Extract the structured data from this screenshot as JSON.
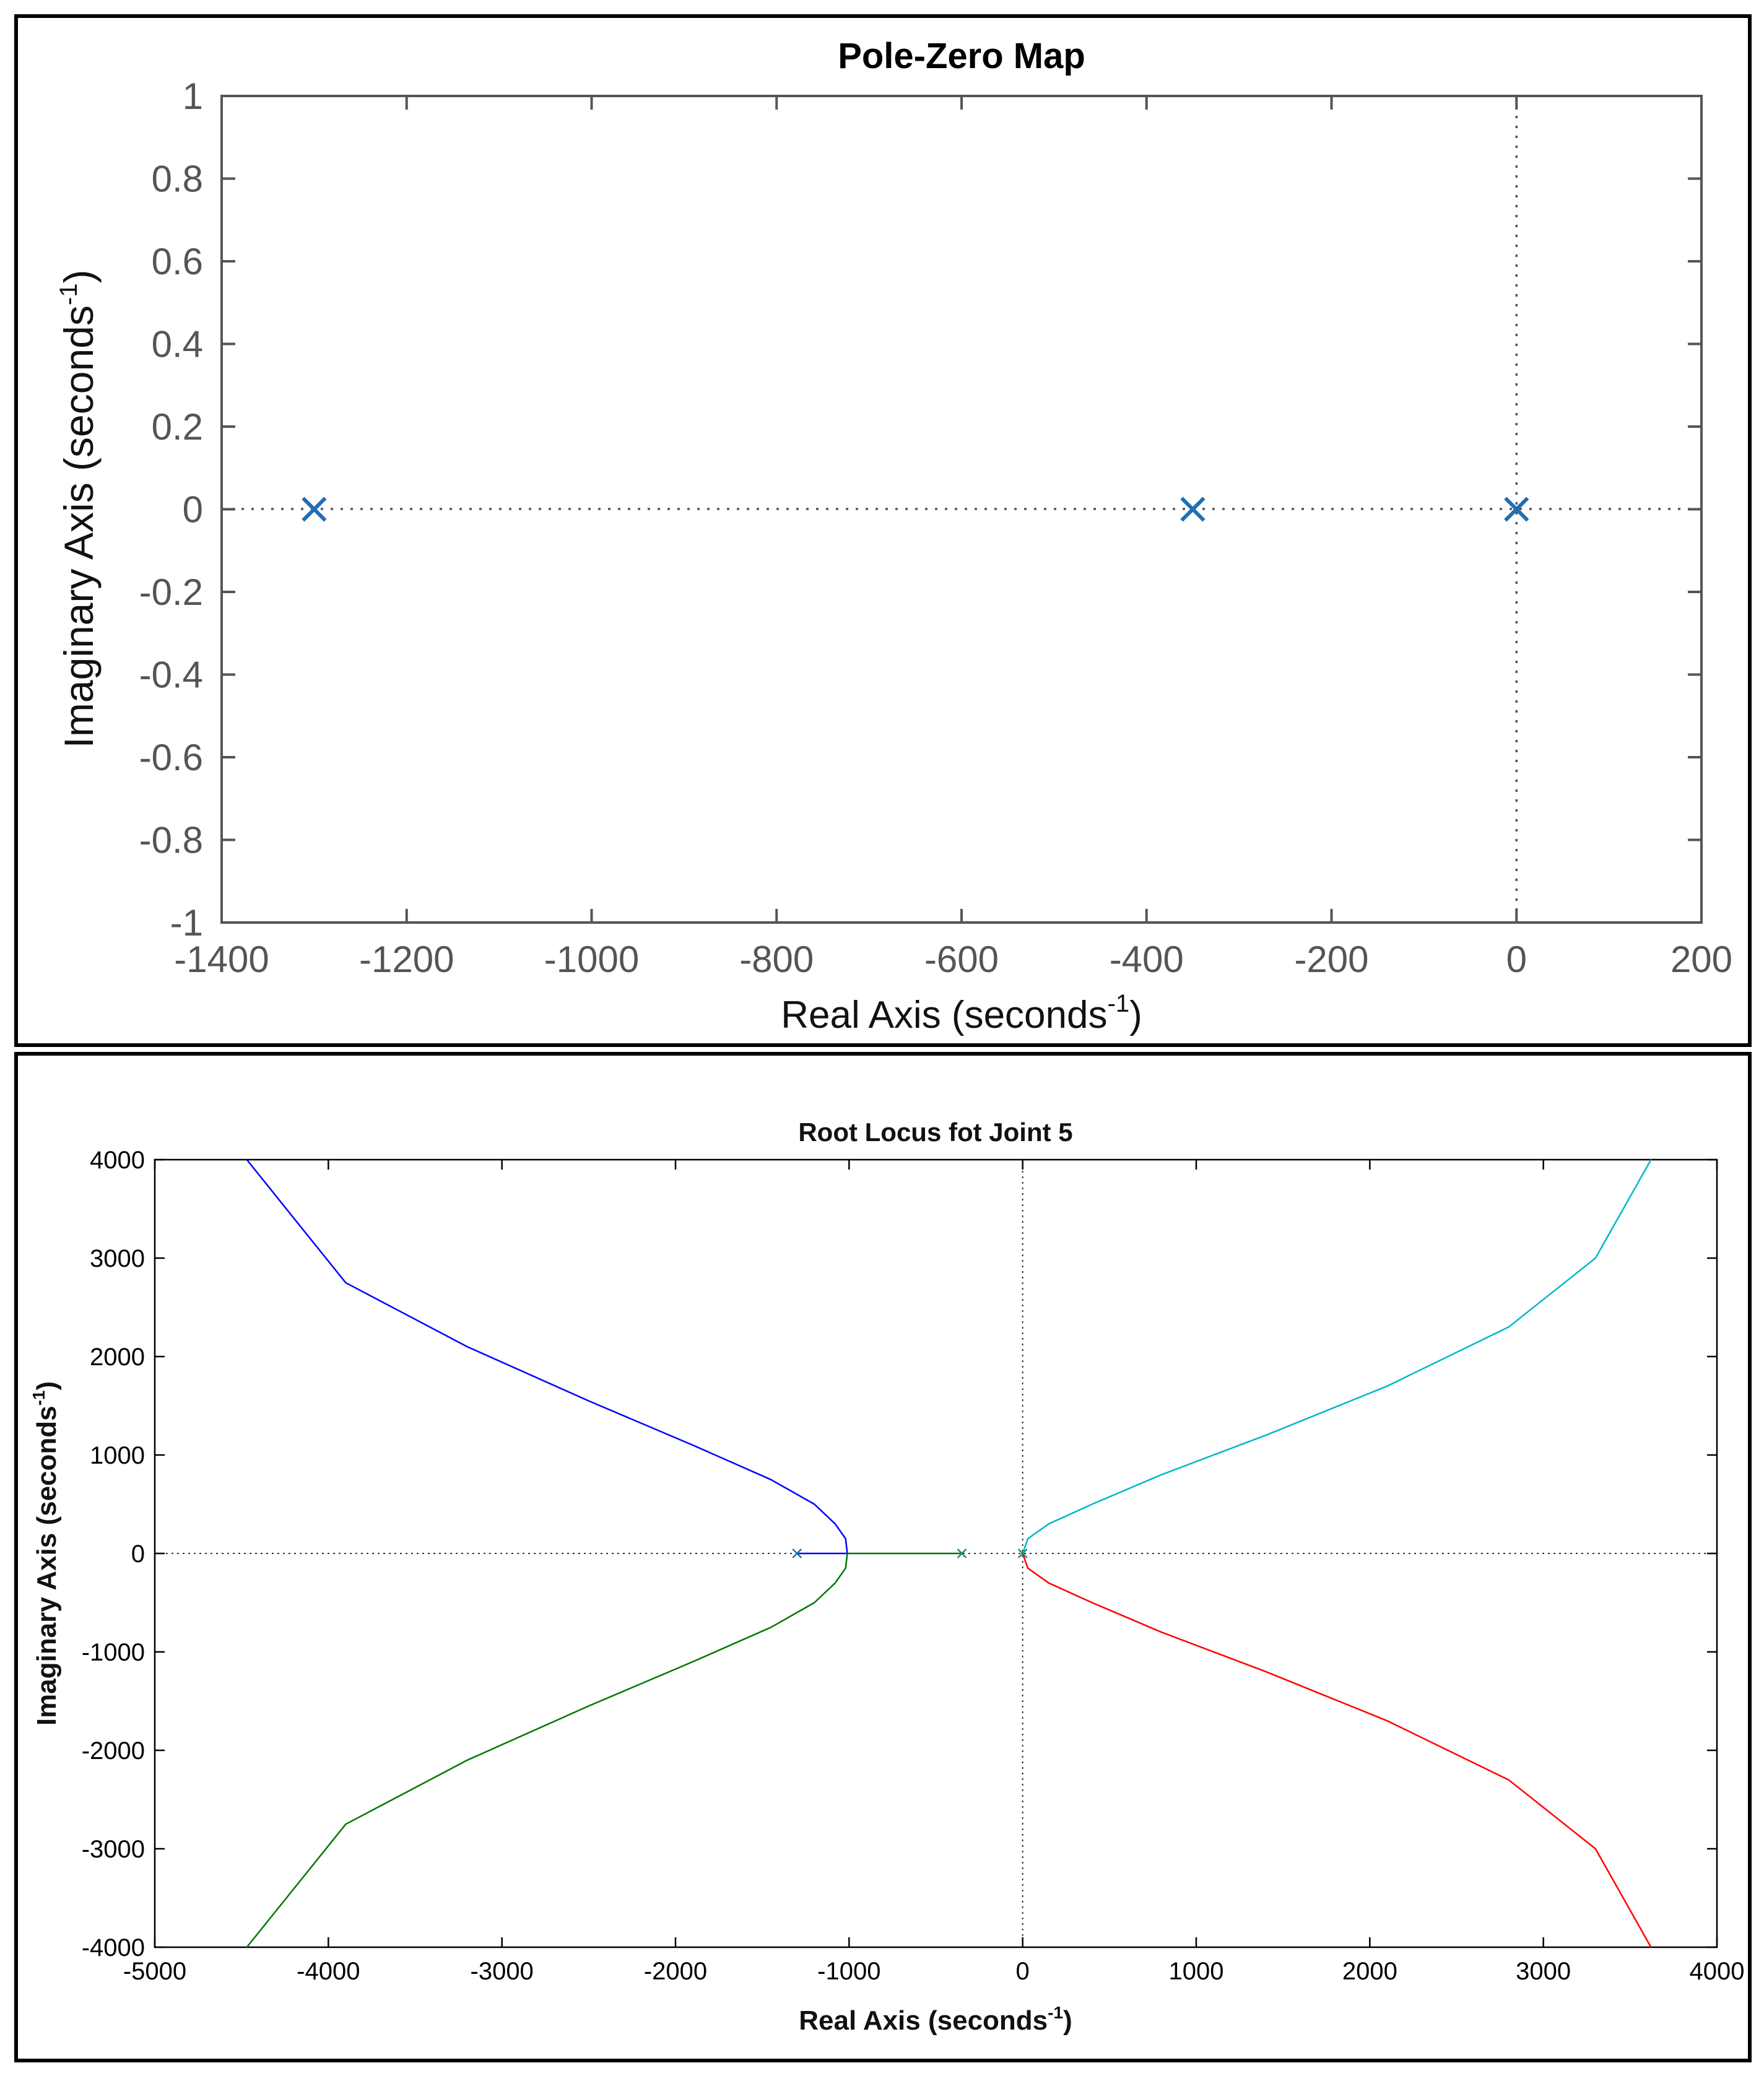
{
  "chart_data": [
    {
      "type": "scatter",
      "title": "Pole-Zero Map",
      "xlabel": "Real Axis (seconds",
      "xlabel_sup": "-1",
      "xlabel_close": ")",
      "ylabel": "Imaginary Axis (seconds",
      "ylabel_sup": "-1",
      "ylabel_close": ")",
      "xlim": [
        -1400,
        200
      ],
      "ylim": [
        -1,
        1
      ],
      "x_ticks": [
        "-1400",
        "-1200",
        "-1000",
        "-800",
        "-600",
        "-400",
        "-200",
        "0",
        "200"
      ],
      "y_ticks": [
        "1",
        "0.8",
        "0.6",
        "0.4",
        "0.2",
        "0",
        "-0.2",
        "-0.4",
        "-0.6",
        "-0.8",
        "-1"
      ],
      "grid": false,
      "poles": [
        {
          "real": -1300,
          "imag": 0
        },
        {
          "real": -350,
          "imag": 0
        },
        {
          "real": 0,
          "imag": 0
        }
      ],
      "marker": "x",
      "marker_color": "#1f6fb5"
    },
    {
      "type": "line",
      "title": "Root Locus fot Joint 5",
      "xlabel": "Real Axis (seconds",
      "xlabel_sup": "-1",
      "xlabel_close": ")",
      "ylabel": "Imaginary Axis (seconds",
      "ylabel_sup": "-1",
      "ylabel_close": ")",
      "xlim": [
        -5000,
        4000
      ],
      "ylim": [
        -4000,
        4000
      ],
      "x_ticks": [
        "-5000",
        "-4000",
        "-3000",
        "-2000",
        "-1000",
        "0",
        "1000",
        "2000",
        "3000",
        "4000"
      ],
      "y_ticks": [
        "4000",
        "3000",
        "2000",
        "1000",
        "0",
        "-1000",
        "-2000",
        "-3000",
        "-4000"
      ],
      "grid": false,
      "poles": [
        {
          "real": -1300,
          "imag": 0,
          "color": "#1f6fb5"
        },
        {
          "real": -350,
          "imag": 0,
          "color": "#1e8a7a"
        },
        {
          "real": 0,
          "imag": 0,
          "color": "#1e8a7a"
        }
      ],
      "series": [
        {
          "color": "#0000ff",
          "points": [
            [
              -1300,
              0
            ],
            [
              -1010,
              0
            ],
            [
              -1020,
              150
            ],
            [
              -1080,
              300
            ],
            [
              -1200,
              500
            ],
            [
              -1450,
              750
            ],
            [
              -1900,
              1100
            ],
            [
              -2500,
              1550
            ],
            [
              -3200,
              2100
            ],
            [
              -3900,
              2750
            ],
            [
              -4470,
              4000
            ]
          ]
        },
        {
          "color": "#007700",
          "points": [
            [
              -350,
              0
            ],
            [
              -1010,
              0
            ],
            [
              -1020,
              -150
            ],
            [
              -1080,
              -300
            ],
            [
              -1200,
              -500
            ],
            [
              -1450,
              -750
            ],
            [
              -1900,
              -1100
            ],
            [
              -2500,
              -1550
            ],
            [
              -3200,
              -2100
            ],
            [
              -3900,
              -2750
            ],
            [
              -4470,
              -4000
            ]
          ]
        },
        {
          "color": "#00b8c8",
          "points": [
            [
              0,
              0
            ],
            [
              30,
              150
            ],
            [
              150,
              300
            ],
            [
              400,
              500
            ],
            [
              800,
              800
            ],
            [
              1400,
              1200
            ],
            [
              2100,
              1700
            ],
            [
              2800,
              2300
            ],
            [
              3300,
              3000
            ],
            [
              3620,
              4000
            ]
          ]
        },
        {
          "color": "#ff0000",
          "points": [
            [
              0,
              0
            ],
            [
              30,
              -150
            ],
            [
              150,
              -300
            ],
            [
              400,
              -500
            ],
            [
              800,
              -800
            ],
            [
              1400,
              -1200
            ],
            [
              2100,
              -1700
            ],
            [
              2800,
              -2300
            ],
            [
              3300,
              -3000
            ],
            [
              3620,
              -4000
            ]
          ]
        }
      ]
    }
  ]
}
